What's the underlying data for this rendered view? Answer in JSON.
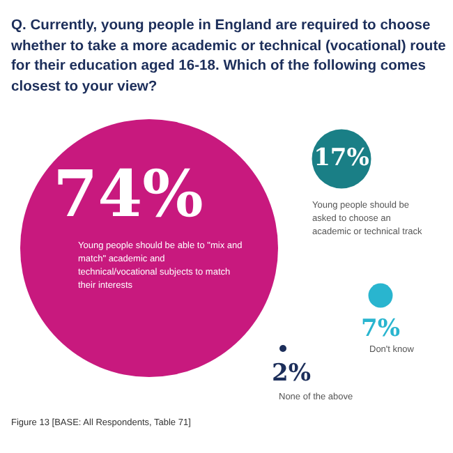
{
  "chart_data": {
    "type": "other",
    "title": "Q. Currently, young people in England are required to choose whether to take a more academic or technical (vocational) route for their education aged 16-18. Which of the following comes closest to your view?",
    "categories": [
      "Young people should be able to \"mix and match\" academic and technical/vocational subjects to match their interests",
      "Young people should be asked to choose an academic or technical track",
      "Don't know",
      "None of the above"
    ],
    "values": [
      74,
      17,
      7,
      2
    ],
    "colors": [
      "#c8197e",
      "#1a7f86",
      "#29b5cf",
      "#1c2e5a"
    ],
    "value_labels": [
      "74%",
      "17%",
      "7%",
      "2%"
    ],
    "annotations": [
      "Figure 13 [BASE: All Respondents, Table 71]"
    ]
  }
}
